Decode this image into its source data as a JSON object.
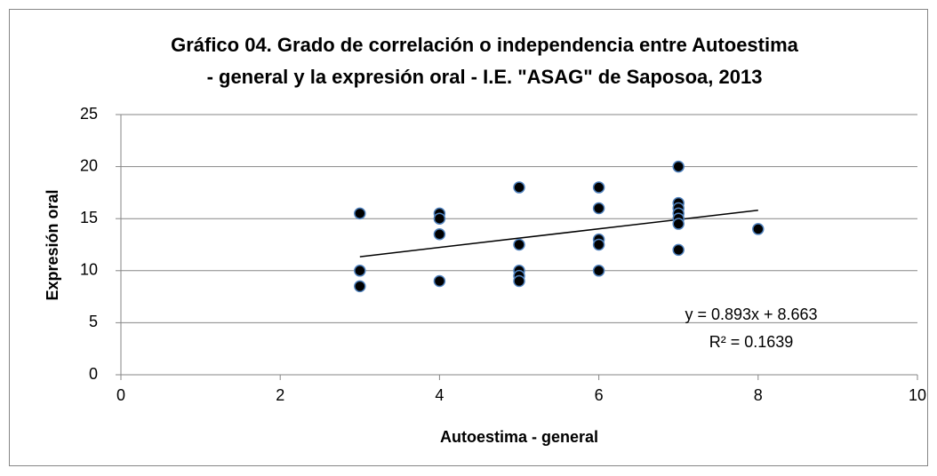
{
  "chart_data": {
    "type": "scatter",
    "title": [
      "Gráfico 04. Grado de correlación o independencia entre Autoestima",
      "- general y la expresión oral -  I.E. \"ASAG\" de Saposoa, 2013"
    ],
    "x_label": "Autoestima - general",
    "y_label": "Expresión oral",
    "xlim": [
      0,
      10
    ],
    "xticks": [
      0,
      2,
      4,
      6,
      8,
      10
    ],
    "ylim": [
      0,
      25
    ],
    "yticks": [
      0,
      5,
      10,
      15,
      20,
      25
    ],
    "grid": true,
    "series": [
      {
        "color": "#000000",
        "edge_color": "#4f81bd",
        "x": [
          3,
          3,
          3,
          4,
          4,
          4,
          4,
          5,
          5,
          5,
          5,
          5,
          6,
          6,
          6,
          6,
          6,
          7,
          7,
          7,
          7,
          7,
          7,
          7,
          8
        ],
        "values": [
          15.5,
          10,
          8.5,
          15.5,
          15,
          13.5,
          9,
          18,
          12.5,
          10,
          9.5,
          9,
          18,
          16,
          13,
          12.5,
          10,
          20,
          16.5,
          16,
          15.5,
          15,
          14.5,
          12,
          14
        ]
      }
    ],
    "trendline": {
      "x": [
        3,
        8
      ],
      "values": [
        11.342,
        15.807
      ],
      "equation": "y = 0.893x + 8.663",
      "r2": "R² = 0.1639",
      "color": "#000000"
    }
  }
}
